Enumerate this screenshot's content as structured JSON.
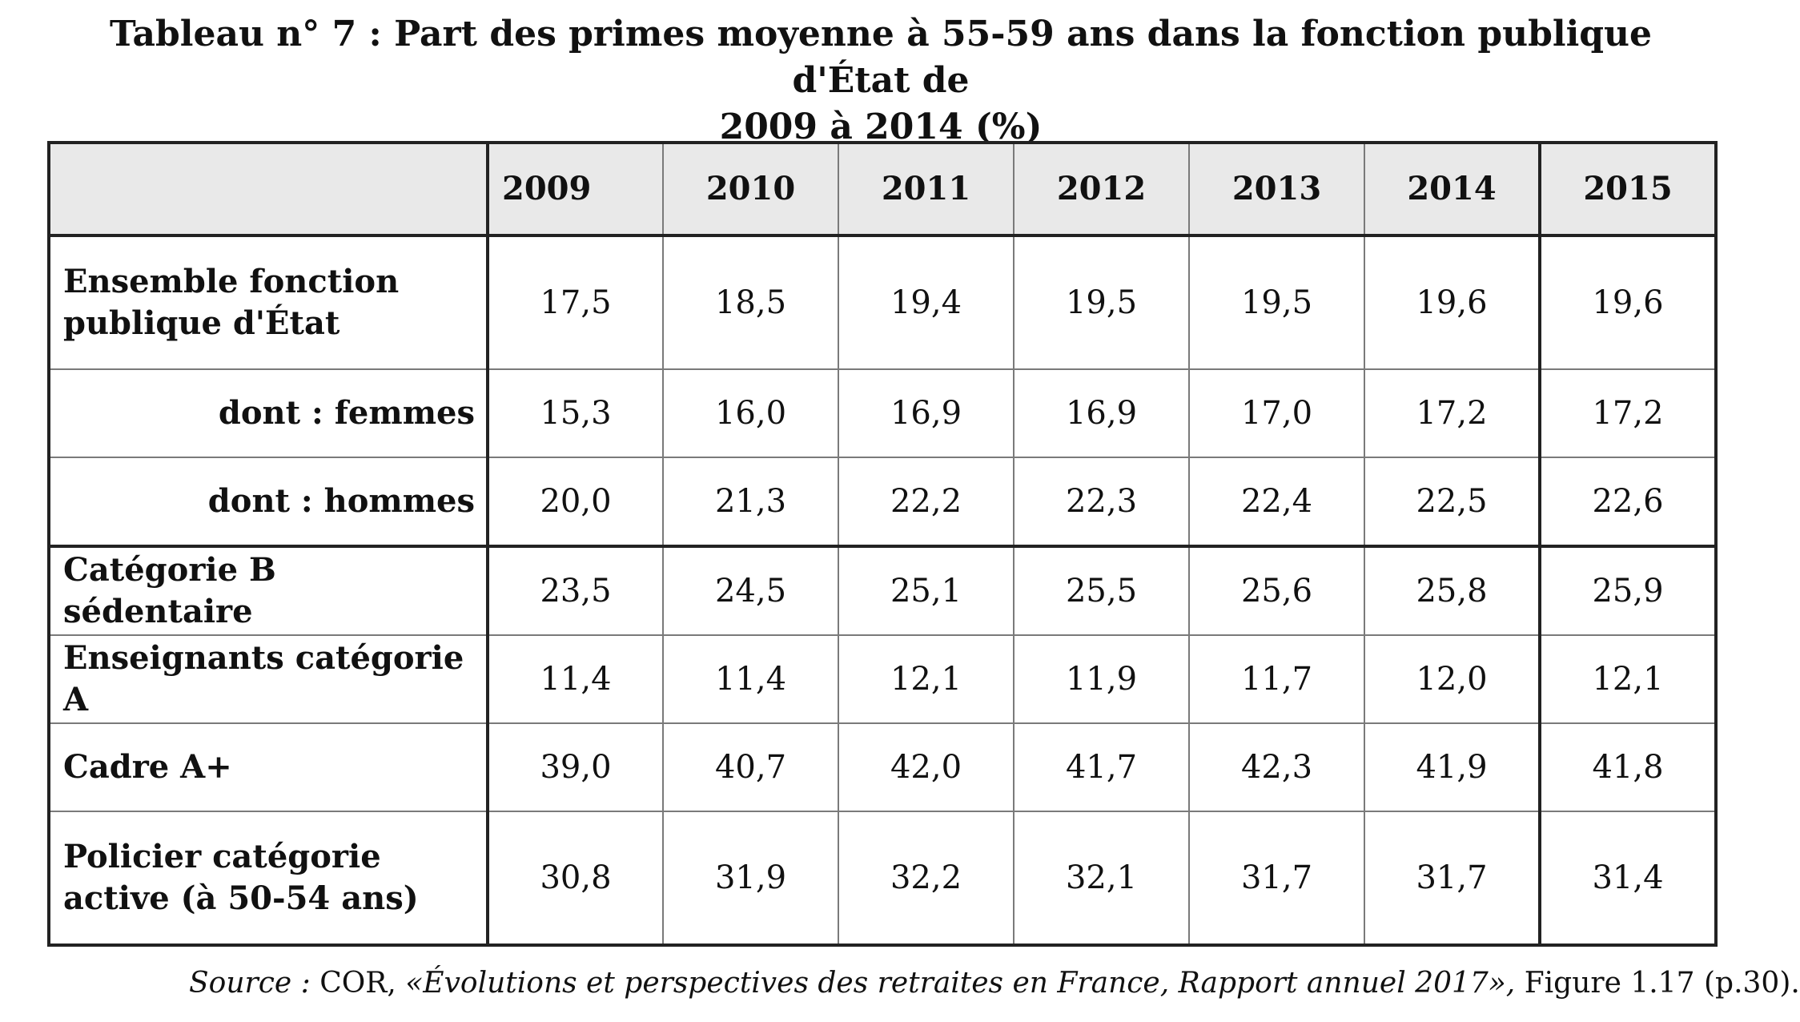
{
  "title": {
    "line1": "Tableau n° 7 : Part des primes moyenne à 55-59 ans dans la fonction publique d'État de",
    "line2": "2009 à 2014 (%)"
  },
  "chart_data": {
    "type": "table",
    "title": "Tableau n° 7 : Part des primes moyenne à 55-59 ans dans la fonction publique d'État de 2009 à 2014 (%)",
    "columns": [
      "2009",
      "2010",
      "2011",
      "2012",
      "2013",
      "2014",
      "2015"
    ],
    "rows": [
      {
        "label": "Ensemble fonction publique d'État",
        "values": [
          "17,5",
          "18,5",
          "19,4",
          "19,5",
          "19,5",
          "19,6",
          "19,6"
        ]
      },
      {
        "label": "dont : femmes",
        "values": [
          "15,3",
          "16,0",
          "16,9",
          "16,9",
          "17,0",
          "17,2",
          "17,2"
        ]
      },
      {
        "label": "dont : hommes",
        "values": [
          "20,0",
          "21,3",
          "22,2",
          "22,3",
          "22,4",
          "22,5",
          "22,6"
        ]
      },
      {
        "label": "Catégorie B sédentaire",
        "values": [
          "23,5",
          "24,5",
          "25,1",
          "25,5",
          "25,6",
          "25,8",
          "25,9"
        ]
      },
      {
        "label": "Enseignants catégorie A",
        "values": [
          "11,4",
          "11,4",
          "12,1",
          "11,9",
          "11,7",
          "12,0",
          "12,1"
        ]
      },
      {
        "label": "Cadre A+",
        "values": [
          "39,0",
          "40,7",
          "42,0",
          "41,7",
          "42,3",
          "41,9",
          "41,8"
        ]
      },
      {
        "label": "Policier catégorie active (à 50-54 ans)",
        "values": [
          "30,8",
          "31,9",
          "32,2",
          "32,1",
          "31,7",
          "31,7",
          "31,4"
        ]
      }
    ]
  },
  "source": {
    "prefix": "Source :",
    "org": " COR, ",
    "publication": "«Évolutions et perspectives des retraites en France, Rapport annuel 2017»,",
    "reference": " Figure 1.17 (p.30)."
  }
}
